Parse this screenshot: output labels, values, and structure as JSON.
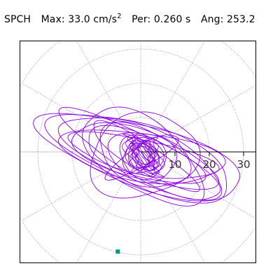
{
  "header": {
    "station": "SPCH",
    "max_label": "Max:",
    "max_value": "33.0 cm/s",
    "max_exp": "2",
    "per_label": "Per:",
    "per_value": "0.260 s",
    "ang_label": "Ang:",
    "ang_value": "253.2"
  },
  "colors": {
    "trace": "#8800dd",
    "grid": "#999999",
    "axis": "#000000",
    "marker": "#009977"
  },
  "chart_data": {
    "type": "polar-particle-motion",
    "units": "cm/s2",
    "max_amplitude": 33.0,
    "period_s": 0.26,
    "angle_deg": 253.2,
    "radial_ticks": [
      10,
      20,
      30
    ],
    "radial_tick_labels": [
      "10",
      "20",
      "30"
    ],
    "grid_rings": [
      10,
      20,
      30,
      40
    ],
    "radial_spokes_deg": [
      0,
      30,
      60,
      90,
      120,
      150,
      180,
      210,
      240,
      270,
      300,
      330
    ],
    "grid": true,
    "marker_angle_deg": 253.2,
    "marker_radius": 33.0,
    "trace_loops": [
      {
        "rx": 3.5,
        "ry": 4.5,
        "rot": 10
      },
      {
        "rx": 4.0,
        "ry": 5.0,
        "rot": 25
      },
      {
        "rx": 5.0,
        "ry": 6.0,
        "rot": -20
      },
      {
        "rx": 6.0,
        "ry": 7.0,
        "rot": 40
      },
      {
        "rx": 7.0,
        "ry": 10.0,
        "rot": 15
      },
      {
        "rx": 8.0,
        "ry": 14.0,
        "rot": 25
      },
      {
        "rx": 6.0,
        "ry": 18.0,
        "rot": 20
      },
      {
        "rx": 7.0,
        "ry": 22.0,
        "rot": 18
      },
      {
        "rx": 8.0,
        "ry": 25.0,
        "rot": 22
      },
      {
        "rx": 9.0,
        "ry": 28.0,
        "rot": 20
      },
      {
        "rx": 6.0,
        "ry": 26.0,
        "rot": 28
      },
      {
        "rx": 5.0,
        "ry": 22.0,
        "rot": 12
      },
      {
        "rx": 4.0,
        "ry": 18.0,
        "rot": 32
      },
      {
        "rx": 10.0,
        "ry": 20.0,
        "rot": 35
      },
      {
        "rx": 12.0,
        "ry": 16.0,
        "rot": -15
      },
      {
        "rx": 3.0,
        "ry": 12.0,
        "rot": -30
      },
      {
        "rx": 9.0,
        "ry": 31.0,
        "rot": 17
      },
      {
        "rx": 7.0,
        "ry": 24.0,
        "rot": 8
      }
    ]
  }
}
